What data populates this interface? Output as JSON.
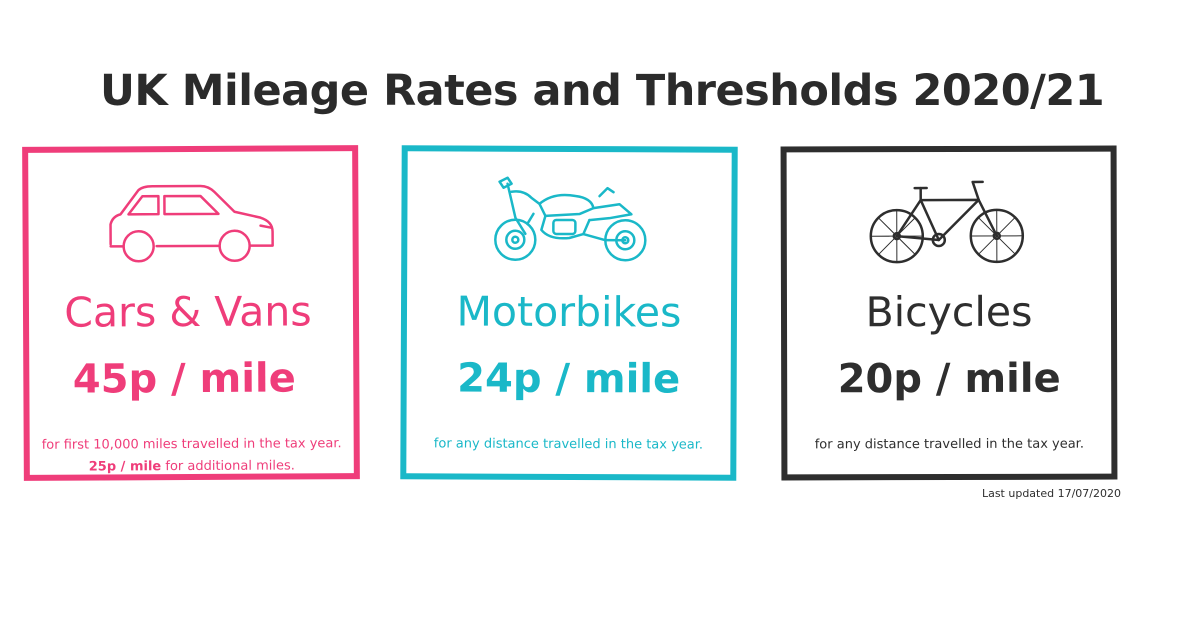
{
  "title": "UK Mileage Rates and Thresholds 2020/21",
  "colors": {
    "cars": "#ef3d7a",
    "motorbikes": "#1ab8c8",
    "bicycles": "#2e2e2e"
  },
  "cards": {
    "cars": {
      "icon": "car-icon",
      "vehicle": "Cars & Vans",
      "rate": "45p / mile",
      "note_line1": "for first 10,000 miles travelled in the tax year.",
      "note_line2_bold": "25p / mile",
      "note_line2_rest": " for additional miles."
    },
    "motorbikes": {
      "icon": "motorbike-icon",
      "vehicle": "Motorbikes",
      "rate": "24p / mile",
      "note": "for any distance travelled in the tax year."
    },
    "bicycles": {
      "icon": "bicycle-icon",
      "vehicle": "Bicycles",
      "rate": "20p / mile",
      "note": "for any distance travelled in the tax year."
    }
  },
  "last_updated": "Last updated 17/07/2020"
}
